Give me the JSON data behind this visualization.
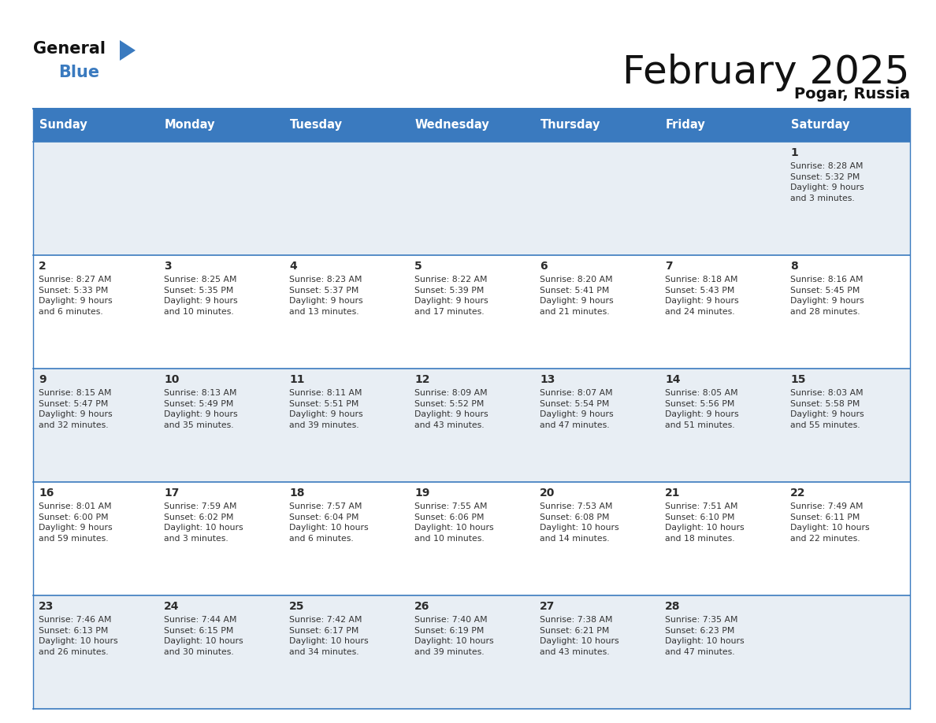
{
  "title": "February 2025",
  "subtitle": "Pogar, Russia",
  "header_color": "#3a7abf",
  "header_text_color": "#ffffff",
  "weekdays": [
    "Sunday",
    "Monday",
    "Tuesday",
    "Wednesday",
    "Thursday",
    "Friday",
    "Saturday"
  ],
  "bg_color": "#ffffff",
  "cell_bg_light": "#e8eef4",
  "cell_bg_white": "#ffffff",
  "day_number_color": "#2c2c2c",
  "text_color": "#333333",
  "line_color": "#3a7abf",
  "logo_general_color": "#111111",
  "logo_blue_color": "#3a7abf",
  "logo_triangle_color": "#3a7abf",
  "calendar": [
    [
      {
        "day": null,
        "info": null
      },
      {
        "day": null,
        "info": null
      },
      {
        "day": null,
        "info": null
      },
      {
        "day": null,
        "info": null
      },
      {
        "day": null,
        "info": null
      },
      {
        "day": null,
        "info": null
      },
      {
        "day": 1,
        "info": "Sunrise: 8:28 AM\nSunset: 5:32 PM\nDaylight: 9 hours\nand 3 minutes."
      }
    ],
    [
      {
        "day": 2,
        "info": "Sunrise: 8:27 AM\nSunset: 5:33 PM\nDaylight: 9 hours\nand 6 minutes."
      },
      {
        "day": 3,
        "info": "Sunrise: 8:25 AM\nSunset: 5:35 PM\nDaylight: 9 hours\nand 10 minutes."
      },
      {
        "day": 4,
        "info": "Sunrise: 8:23 AM\nSunset: 5:37 PM\nDaylight: 9 hours\nand 13 minutes."
      },
      {
        "day": 5,
        "info": "Sunrise: 8:22 AM\nSunset: 5:39 PM\nDaylight: 9 hours\nand 17 minutes."
      },
      {
        "day": 6,
        "info": "Sunrise: 8:20 AM\nSunset: 5:41 PM\nDaylight: 9 hours\nand 21 minutes."
      },
      {
        "day": 7,
        "info": "Sunrise: 8:18 AM\nSunset: 5:43 PM\nDaylight: 9 hours\nand 24 minutes."
      },
      {
        "day": 8,
        "info": "Sunrise: 8:16 AM\nSunset: 5:45 PM\nDaylight: 9 hours\nand 28 minutes."
      }
    ],
    [
      {
        "day": 9,
        "info": "Sunrise: 8:15 AM\nSunset: 5:47 PM\nDaylight: 9 hours\nand 32 minutes."
      },
      {
        "day": 10,
        "info": "Sunrise: 8:13 AM\nSunset: 5:49 PM\nDaylight: 9 hours\nand 35 minutes."
      },
      {
        "day": 11,
        "info": "Sunrise: 8:11 AM\nSunset: 5:51 PM\nDaylight: 9 hours\nand 39 minutes."
      },
      {
        "day": 12,
        "info": "Sunrise: 8:09 AM\nSunset: 5:52 PM\nDaylight: 9 hours\nand 43 minutes."
      },
      {
        "day": 13,
        "info": "Sunrise: 8:07 AM\nSunset: 5:54 PM\nDaylight: 9 hours\nand 47 minutes."
      },
      {
        "day": 14,
        "info": "Sunrise: 8:05 AM\nSunset: 5:56 PM\nDaylight: 9 hours\nand 51 minutes."
      },
      {
        "day": 15,
        "info": "Sunrise: 8:03 AM\nSunset: 5:58 PM\nDaylight: 9 hours\nand 55 minutes."
      }
    ],
    [
      {
        "day": 16,
        "info": "Sunrise: 8:01 AM\nSunset: 6:00 PM\nDaylight: 9 hours\nand 59 minutes."
      },
      {
        "day": 17,
        "info": "Sunrise: 7:59 AM\nSunset: 6:02 PM\nDaylight: 10 hours\nand 3 minutes."
      },
      {
        "day": 18,
        "info": "Sunrise: 7:57 AM\nSunset: 6:04 PM\nDaylight: 10 hours\nand 6 minutes."
      },
      {
        "day": 19,
        "info": "Sunrise: 7:55 AM\nSunset: 6:06 PM\nDaylight: 10 hours\nand 10 minutes."
      },
      {
        "day": 20,
        "info": "Sunrise: 7:53 AM\nSunset: 6:08 PM\nDaylight: 10 hours\nand 14 minutes."
      },
      {
        "day": 21,
        "info": "Sunrise: 7:51 AM\nSunset: 6:10 PM\nDaylight: 10 hours\nand 18 minutes."
      },
      {
        "day": 22,
        "info": "Sunrise: 7:49 AM\nSunset: 6:11 PM\nDaylight: 10 hours\nand 22 minutes."
      }
    ],
    [
      {
        "day": 23,
        "info": "Sunrise: 7:46 AM\nSunset: 6:13 PM\nDaylight: 10 hours\nand 26 minutes."
      },
      {
        "day": 24,
        "info": "Sunrise: 7:44 AM\nSunset: 6:15 PM\nDaylight: 10 hours\nand 30 minutes."
      },
      {
        "day": 25,
        "info": "Sunrise: 7:42 AM\nSunset: 6:17 PM\nDaylight: 10 hours\nand 34 minutes."
      },
      {
        "day": 26,
        "info": "Sunrise: 7:40 AM\nSunset: 6:19 PM\nDaylight: 10 hours\nand 39 minutes."
      },
      {
        "day": 27,
        "info": "Sunrise: 7:38 AM\nSunset: 6:21 PM\nDaylight: 10 hours\nand 43 minutes."
      },
      {
        "day": 28,
        "info": "Sunrise: 7:35 AM\nSunset: 6:23 PM\nDaylight: 10 hours\nand 47 minutes."
      },
      {
        "day": null,
        "info": null
      }
    ]
  ]
}
